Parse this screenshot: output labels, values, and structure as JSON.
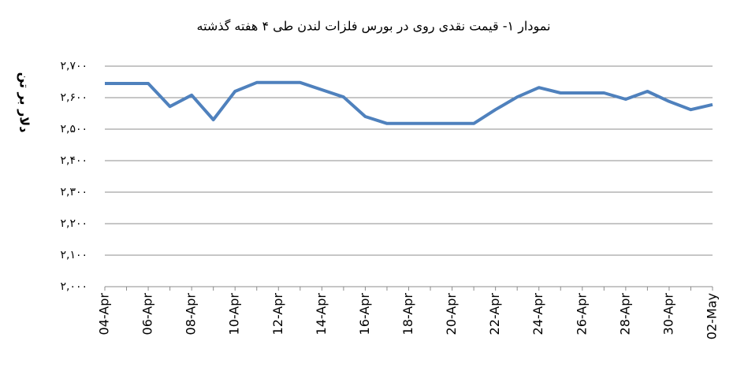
{
  "chart_data": {
    "type": "line",
    "title": "نمودار ۱- قیمت نقدی روی  در بورس فلزات لندن طی ۴ هفته گذشته",
    "y_label": "دلار بر تن",
    "categories": [
      "04-Apr",
      null,
      "06-Apr",
      null,
      "08-Apr",
      null,
      "10-Apr",
      null,
      "12-Apr",
      null,
      "14-Apr",
      null,
      "16-Apr",
      null,
      "18-Apr",
      null,
      "20-Apr",
      null,
      "22-Apr",
      null,
      "24-Apr",
      null,
      "26-Apr",
      null,
      "28-Apr",
      null,
      "30-Apr",
      null,
      "02-May"
    ],
    "series": [
      {
        "color": "#4f81bd",
        "values": [
          2645,
          2645,
          2645,
          2572,
          2608,
          2530,
          2620,
          2648,
          2648,
          2648,
          2625,
          2602,
          2540,
          2518,
          2518,
          2518,
          2518,
          2518,
          2562,
          2602,
          2632,
          2615,
          2615,
          2615,
          2595,
          2620,
          2588,
          2562,
          2578
        ]
      }
    ],
    "ylim": [
      2000,
      2700
    ],
    "yticks": [
      {
        "value": 2000,
        "label": "۲,۰۰۰"
      },
      {
        "value": 2100,
        "label": "۲,۱۰۰"
      },
      {
        "value": 2200,
        "label": "۲,۲۰۰"
      },
      {
        "value": 2300,
        "label": "۲,۳۰۰"
      },
      {
        "value": 2400,
        "label": "۲,۴۰۰"
      },
      {
        "value": 2500,
        "label": "۲,۵۰۰"
      },
      {
        "value": 2600,
        "label": "۲,۶۰۰"
      },
      {
        "value": 2700,
        "label": "۲,۷۰۰"
      }
    ],
    "grid": true
  }
}
